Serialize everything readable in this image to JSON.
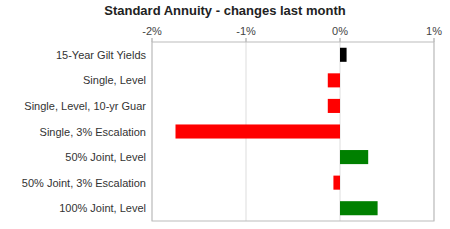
{
  "chart_data": {
    "type": "bar",
    "orientation": "horizontal",
    "title": "Standard Annuity - changes last month",
    "categories": [
      "15-Year Gilt Yields",
      "Single, Level",
      "Single, Level, 10-yr Guar",
      "Single, 3% Escalation",
      "50% Joint, Level",
      "50% Joint, 3% Escalation",
      "100% Joint, Level"
    ],
    "values": [
      0.07,
      -0.13,
      -0.13,
      -1.75,
      0.3,
      -0.07,
      0.4
    ],
    "colors": [
      "#000000",
      "#ff0000",
      "#ff0000",
      "#ff0000",
      "#008000",
      "#ff0000",
      "#008000"
    ],
    "xlim": [
      -2.0,
      1.0
    ],
    "xticks": [
      {
        "value": -2.0,
        "label": "-2%"
      },
      {
        "value": -1.0,
        "label": "-1%"
      },
      {
        "value": 0.0,
        "label": "0%"
      },
      {
        "value": 1.0,
        "label": "1%"
      }
    ],
    "grid": true
  }
}
